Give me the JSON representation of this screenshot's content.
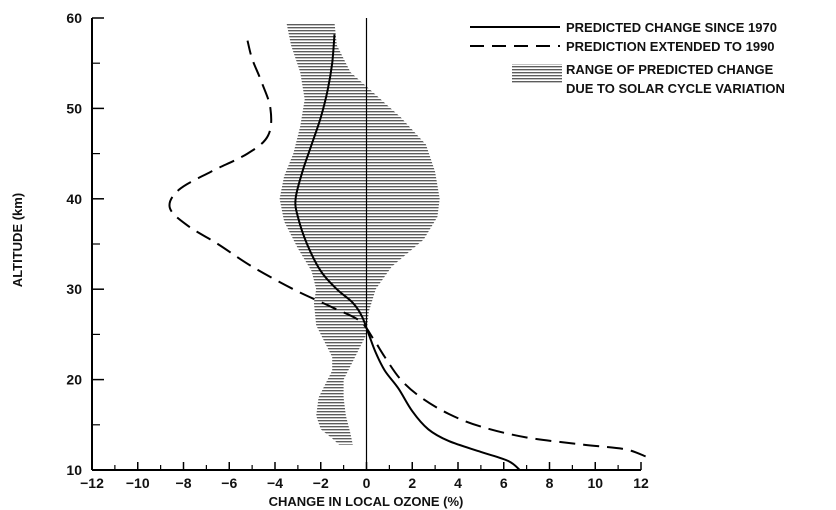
{
  "chart_data": {
    "type": "line",
    "xlabel": "CHANGE IN LOCAL OZONE (%)",
    "ylabel": "ALTITUDE (km)",
    "xlim": [
      -12,
      12
    ],
    "ylim": [
      10,
      60
    ],
    "x_ticks": [
      "−12",
      "−10",
      "−8",
      "−6",
      "−4",
      "−2",
      "0",
      "2",
      "4",
      "6",
      "8",
      "10",
      "12"
    ],
    "y_ticks": [
      "10",
      "20",
      "30",
      "40",
      "50",
      "60"
    ],
    "grid": false,
    "legend_position": "top-right",
    "legend": {
      "solid": "PREDICTED CHANGE SINCE 1970",
      "dashed": "PREDICTION EXTENDED TO 1990",
      "range_line1": "RANGE OF PREDICTED CHANGE",
      "range_line2": "DUE TO SOLAR CYCLE VARIATION"
    },
    "series": [
      {
        "name": "PREDICTED CHANGE SINCE 1970",
        "style": "solid",
        "points": [
          [
            6.7,
            10
          ],
          [
            6.2,
            11
          ],
          [
            5.0,
            12
          ],
          [
            3.6,
            13.2
          ],
          [
            2.7,
            14.5
          ],
          [
            2.0,
            16.5
          ],
          [
            1.4,
            19
          ],
          [
            0.8,
            21
          ],
          [
            0.4,
            23
          ],
          [
            0.1,
            25
          ],
          [
            -0.2,
            27
          ],
          [
            -0.6,
            28.5
          ],
          [
            -1.3,
            30
          ],
          [
            -2.0,
            32
          ],
          [
            -2.6,
            35
          ],
          [
            -3.0,
            38
          ],
          [
            -3.1,
            40
          ],
          [
            -2.8,
            43
          ],
          [
            -2.4,
            46
          ],
          [
            -2.0,
            49
          ],
          [
            -1.7,
            52
          ],
          [
            -1.5,
            55
          ],
          [
            -1.4,
            58.2
          ]
        ]
      },
      {
        "name": "PREDICTION EXTENDED TO 1990",
        "style": "dashed",
        "points": [
          [
            12.2,
            11.5
          ],
          [
            11.3,
            12.3
          ],
          [
            9.5,
            12.8
          ],
          [
            7.0,
            13.6
          ],
          [
            5.0,
            14.8
          ],
          [
            3.6,
            16.2
          ],
          [
            2.4,
            18
          ],
          [
            1.5,
            20
          ],
          [
            0.8,
            22.5
          ],
          [
            0.3,
            24.5
          ],
          [
            -0.3,
            26.5
          ],
          [
            -1.5,
            28
          ],
          [
            -3.2,
            30
          ],
          [
            -5.0,
            32.5
          ],
          [
            -6.5,
            35
          ],
          [
            -7.8,
            37
          ],
          [
            -8.6,
            39
          ],
          [
            -8.2,
            41
          ],
          [
            -6.8,
            43
          ],
          [
            -5.2,
            45
          ],
          [
            -4.3,
            47
          ],
          [
            -4.2,
            50
          ],
          [
            -4.6,
            53
          ],
          [
            -5.0,
            55.5
          ],
          [
            -5.2,
            57.5
          ]
        ]
      }
    ],
    "range_band": {
      "name": "RANGE OF PREDICTED CHANGE DUE TO SOLAR CYCLE VARIATION",
      "left": [
        [
          -1.2,
          12.8
        ],
        [
          -1.5,
          13.5
        ],
        [
          -2.0,
          14.5
        ],
        [
          -2.2,
          16
        ],
        [
          -2.1,
          18
        ],
        [
          -1.8,
          19.5
        ],
        [
          -1.5,
          21
        ],
        [
          -1.5,
          22.5
        ],
        [
          -1.8,
          24
        ],
        [
          -2.2,
          26
        ],
        [
          -2.3,
          28.5
        ],
        [
          -2.2,
          30
        ],
        [
          -2.4,
          32
        ],
        [
          -3.0,
          34.5
        ],
        [
          -3.6,
          37.5
        ],
        [
          -3.8,
          40
        ],
        [
          -3.6,
          42.5
        ],
        [
          -3.2,
          45
        ],
        [
          -2.9,
          48
        ],
        [
          -2.7,
          51
        ],
        [
          -2.9,
          54
        ],
        [
          -3.3,
          57
        ],
        [
          -3.5,
          59.5
        ]
      ],
      "right": [
        [
          -0.6,
          12.8
        ],
        [
          -0.7,
          14
        ],
        [
          -0.9,
          16
        ],
        [
          -1.0,
          18
        ],
        [
          -1.0,
          20
        ],
        [
          -0.6,
          22
        ],
        [
          0,
          25
        ],
        [
          0.1,
          27.5
        ],
        [
          0.4,
          30
        ],
        [
          1.1,
          32.5
        ],
        [
          2.5,
          35.5
        ],
        [
          3.1,
          38
        ],
        [
          3.2,
          40
        ],
        [
          3.0,
          43
        ],
        [
          2.6,
          46
        ],
        [
          1.5,
          49
        ],
        [
          0.4,
          51.5
        ],
        [
          -0.7,
          54
        ],
        [
          -1.3,
          57
        ],
        [
          -1.4,
          59.5
        ]
      ]
    }
  }
}
